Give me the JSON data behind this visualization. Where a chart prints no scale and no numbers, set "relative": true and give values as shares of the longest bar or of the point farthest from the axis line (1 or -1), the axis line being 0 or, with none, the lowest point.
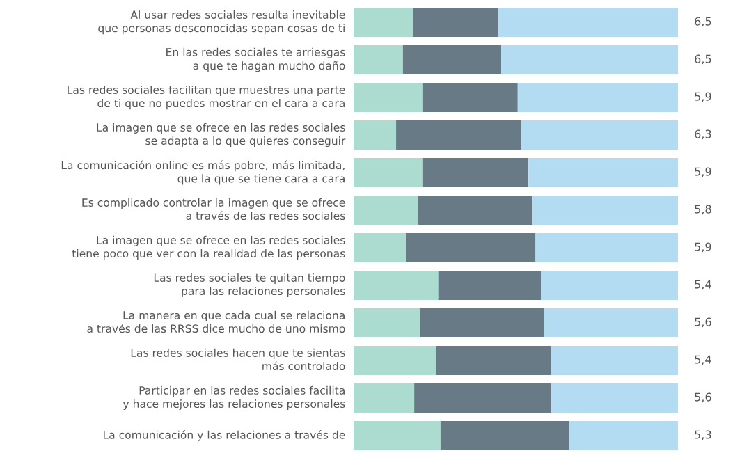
{
  "chart_data": {
    "type": "bar",
    "orientation": "horizontal",
    "stacked": true,
    "relative": true,
    "categories": [
      "Al usar redes sociales resulta inevitable\nque personas desconocidas sepan cosas de ti",
      "En las redes sociales te arriesgas\na que te hagan mucho daño",
      "Las redes sociales facilitan que muestres una parte\nde ti que no puedes mostrar en el cara a cara",
      "La imagen que se ofrece en las redes sociales\nse adapta a lo que quieres conseguir",
      "La comunicación online es más pobre, más limitada,\nque la que se tiene cara a cara",
      "Es complicado controlar la imagen que se ofrece\na través de las redes sociales",
      "La imagen que se ofrece en las redes sociales\ntiene poco que ver con la realidad de las personas",
      "Las redes sociales te quitan tiempo\npara las relaciones personales",
      "La manera en que cada cual se relaciona\na través de las RRSS dice mucho de uno mismo",
      "Las redes sociales hacen que te sientas\nmás controlado",
      "Participar en las redes sociales facilita\ny hace mejores las relaciones personales",
      "La comunicación y las relaciones a través de"
    ],
    "series": [
      {
        "color": "#acdcd0",
        "values": [
          0.184,
          0.152,
          0.212,
          0.131,
          0.212,
          0.199,
          0.161,
          0.261,
          0.204,
          0.255,
          0.187,
          0.268
        ]
      },
      {
        "color": "#687a86",
        "values": [
          0.263,
          0.303,
          0.294,
          0.385,
          0.327,
          0.353,
          0.4,
          0.317,
          0.383,
          0.354,
          0.423,
          0.396
        ]
      },
      {
        "color": "#b3dcf2",
        "values": [
          0.553,
          0.545,
          0.494,
          0.484,
          0.461,
          0.448,
          0.439,
          0.422,
          0.413,
          0.391,
          0.39,
          0.336
        ]
      }
    ],
    "annotations": [
      "6,5",
      "6,5",
      "5,9",
      "6,3",
      "5,9",
      "5,8",
      "5,9",
      "5,4",
      "5,6",
      "5,4",
      "5,6",
      "5,3"
    ]
  }
}
